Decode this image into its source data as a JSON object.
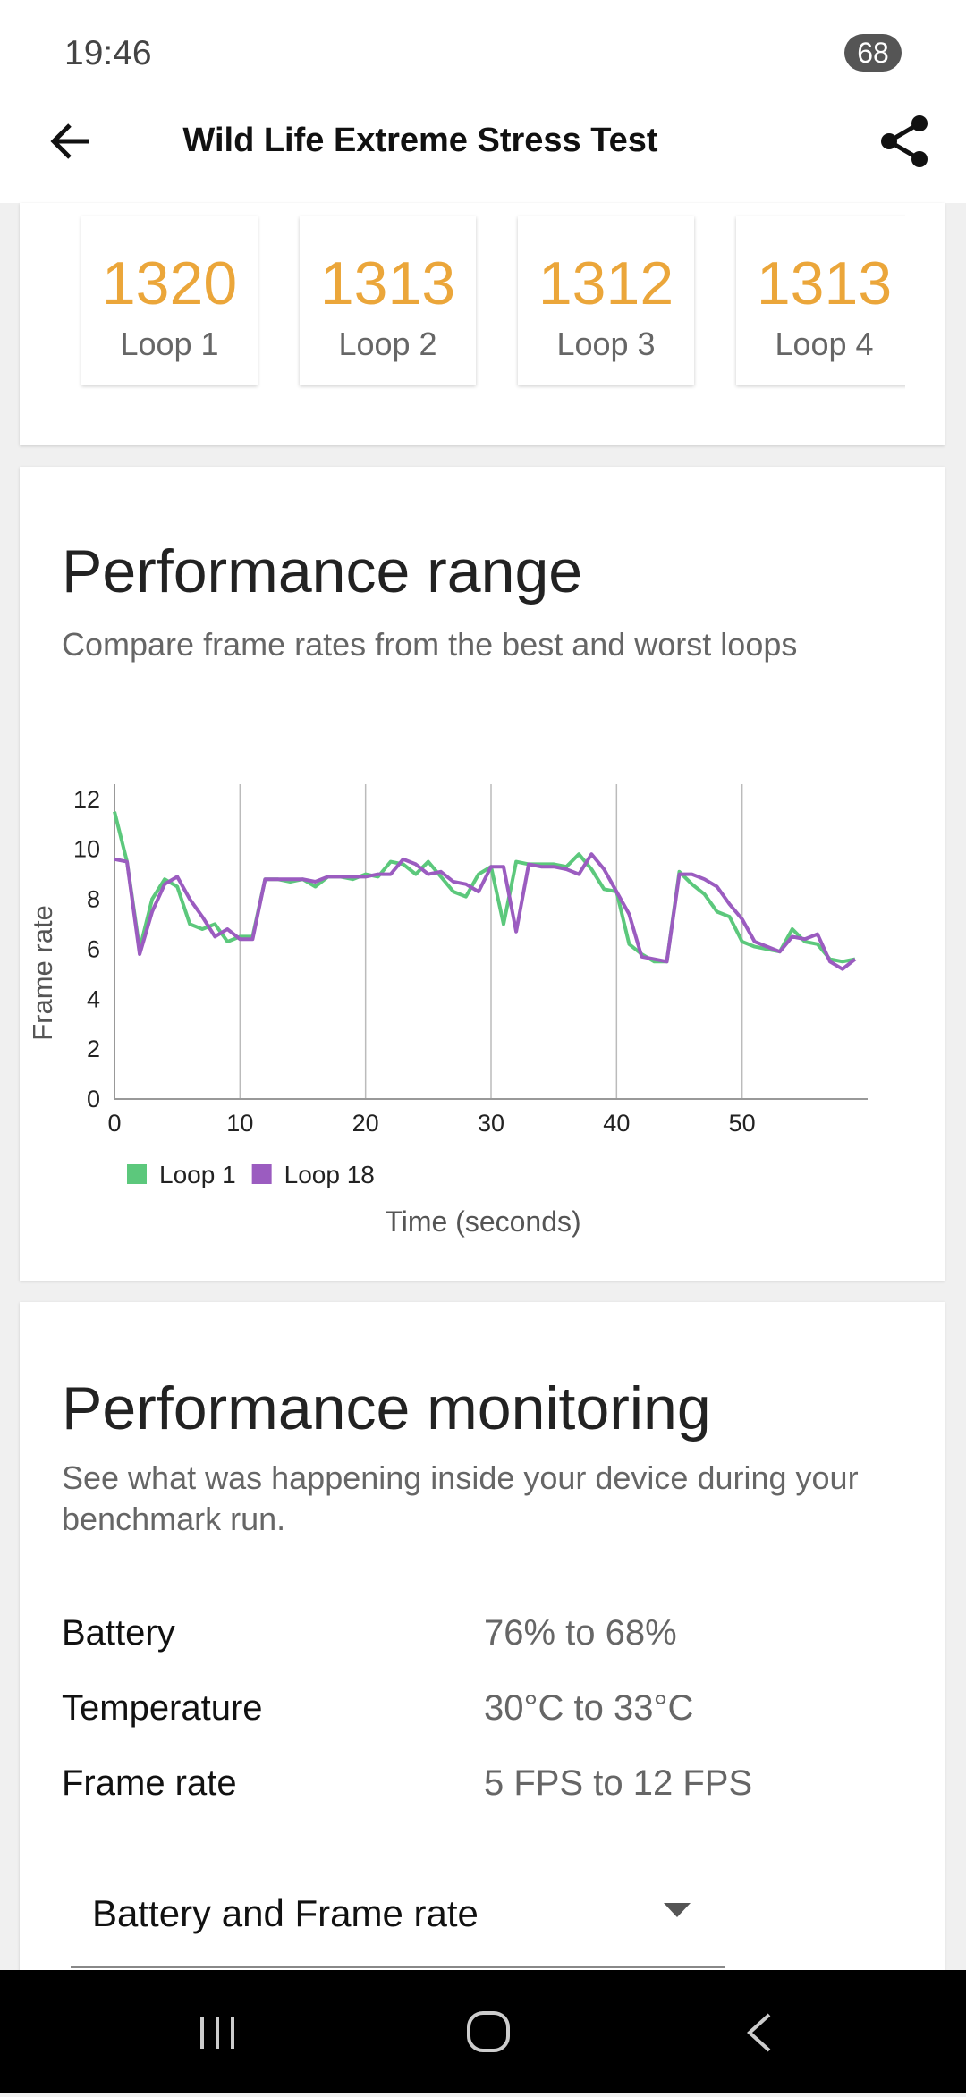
{
  "status_bar": {
    "time": "19:46",
    "battery": "68"
  },
  "header": {
    "title": "Wild Life Extreme Stress Test"
  },
  "scores": [
    {
      "value": 1320,
      "label": "Loop 1"
    },
    {
      "value": 1313,
      "label": "Loop 2"
    },
    {
      "value": 1312,
      "label": "Loop 3"
    },
    {
      "value": 1313,
      "label": "Loop 4"
    }
  ],
  "performance_range": {
    "title": "Performance range",
    "subtitle": "Compare frame rates from the best and worst loops"
  },
  "chart_data": {
    "type": "line",
    "x_label": "Time (seconds)",
    "y_label": "Frame rate",
    "x": [
      0,
      1,
      2,
      3,
      4,
      5,
      6,
      7,
      8,
      9,
      10,
      11,
      12,
      13,
      14,
      15,
      16,
      17,
      18,
      19,
      20,
      21,
      22,
      23,
      24,
      25,
      26,
      27,
      28,
      29,
      30,
      31,
      32,
      33,
      34,
      35,
      36,
      37,
      38,
      39,
      40,
      41,
      42,
      43,
      44,
      45,
      46,
      47,
      48,
      49,
      50,
      51,
      52,
      53,
      54,
      55,
      56,
      57,
      58,
      59
    ],
    "series": [
      {
        "name": "Loop 1",
        "color": "#5cc87c",
        "values": [
          11.5,
          9.5,
          6.0,
          8.0,
          8.8,
          8.5,
          7.0,
          6.8,
          7.0,
          6.3,
          6.5,
          6.5,
          8.8,
          8.8,
          8.7,
          8.8,
          8.5,
          8.9,
          8.9,
          8.8,
          9.0,
          8.9,
          9.5,
          9.4,
          9.0,
          9.5,
          8.9,
          8.3,
          8.1,
          9.0,
          9.3,
          7.0,
          9.5,
          9.4,
          9.4,
          9.4,
          9.3,
          9.8,
          9.2,
          8.4,
          8.3,
          6.2,
          5.8,
          5.5,
          5.5,
          9.1,
          8.6,
          8.2,
          7.5,
          7.3,
          6.3,
          6.1,
          6.0,
          5.9,
          6.8,
          6.3,
          6.2,
          5.6,
          5.5,
          5.6
        ]
      },
      {
        "name": "Loop 18",
        "color": "#9b5cc0",
        "values": [
          9.6,
          9.5,
          5.8,
          7.5,
          8.6,
          8.9,
          8.0,
          7.3,
          6.5,
          6.8,
          6.4,
          6.4,
          8.8,
          8.8,
          8.8,
          8.8,
          8.7,
          8.9,
          8.9,
          8.9,
          8.9,
          9.0,
          9.0,
          9.6,
          9.4,
          9.0,
          9.1,
          8.7,
          8.6,
          8.3,
          9.3,
          9.3,
          6.7,
          9.4,
          9.3,
          9.3,
          9.2,
          9.0,
          9.8,
          9.2,
          8.3,
          7.4,
          5.7,
          5.6,
          5.5,
          9.0,
          9.0,
          8.8,
          8.5,
          7.8,
          7.2,
          6.3,
          6.1,
          5.9,
          6.5,
          6.4,
          6.6,
          5.5,
          5.2,
          5.6
        ]
      }
    ],
    "xlim": [
      0,
      60
    ],
    "ylim": [
      0,
      12.6
    ],
    "xticks": [
      0,
      10,
      20,
      30,
      40,
      50
    ],
    "yticks": [
      0,
      2,
      4,
      6,
      8,
      10,
      12
    ],
    "grid": true,
    "legend": "bottom-left"
  },
  "monitoring": {
    "title": "Performance monitoring",
    "subtitle": "See what was happening inside your device during your benchmark run.",
    "rows": [
      [
        "Battery",
        "76% to 68%"
      ],
      [
        "Temperature",
        "30°C to 33°C"
      ],
      [
        "Frame rate",
        "5 FPS to 12 FPS"
      ]
    ],
    "dropdown": "Battery and Frame rate"
  }
}
